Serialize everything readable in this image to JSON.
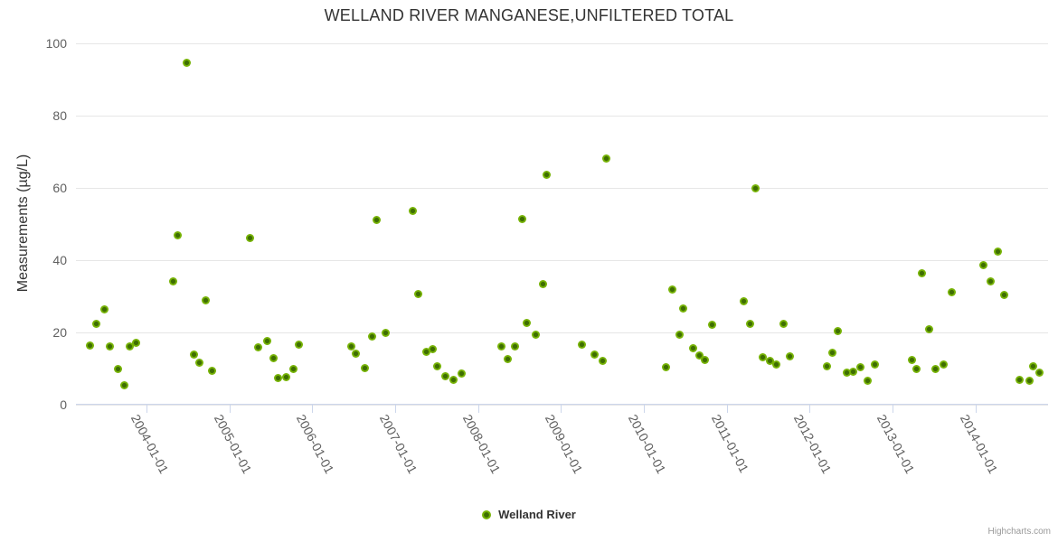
{
  "title": "WELLAND RIVER MANGANESE,UNFILTERED TOTAL",
  "credit": {
    "label": "Highcharts.com"
  },
  "colors": {
    "point_fill": "#77b306",
    "point_core": "#3e6e02",
    "gridline": "#e6e6e6",
    "axis_line": "#ccd6eb",
    "title_text": "#333333",
    "tick_text": "#606060"
  },
  "chart_data": {
    "type": "scatter",
    "title": "WELLAND RIVER MANGANESE,UNFILTERED TOTAL",
    "xlabel": "",
    "ylabel": "Measurements (µg/L)",
    "ylim": [
      0,
      100
    ],
    "yticks": [
      0,
      20,
      40,
      60,
      80,
      100
    ],
    "xticks": [
      "2004-01-01",
      "2005-01-01",
      "2006-01-01",
      "2007-01-01",
      "2008-01-01",
      "2009-01-01",
      "2010-01-01",
      "2011-01-01",
      "2012-01-01",
      "2013-01-01",
      "2014-01-01"
    ],
    "grid": "horizontal-only",
    "legend_position": "bottom-center",
    "series": [
      {
        "name": "Welland River",
        "color": "#77b306",
        "point_format": "[decimal_year, micrograms_per_litre]",
        "points": [
          [
            2003.32,
            16.3
          ],
          [
            2003.4,
            22.3
          ],
          [
            2003.49,
            26.3
          ],
          [
            2003.56,
            16.0
          ],
          [
            2003.66,
            9.8
          ],
          [
            2003.73,
            5.3
          ],
          [
            2003.8,
            16.0
          ],
          [
            2003.88,
            17.0
          ],
          [
            2004.32,
            34.0
          ],
          [
            2004.38,
            46.8
          ],
          [
            2004.49,
            94.4
          ],
          [
            2004.57,
            13.8
          ],
          [
            2004.64,
            11.4
          ],
          [
            2004.71,
            28.7
          ],
          [
            2004.79,
            9.2
          ],
          [
            2005.25,
            45.9
          ],
          [
            2005.35,
            15.8
          ],
          [
            2005.46,
            17.6
          ],
          [
            2005.53,
            12.8
          ],
          [
            2005.59,
            7.3
          ],
          [
            2005.69,
            7.5
          ],
          [
            2005.77,
            9.8
          ],
          [
            2005.84,
            16.5
          ],
          [
            2006.47,
            16.0
          ],
          [
            2006.53,
            14.0
          ],
          [
            2006.63,
            10.0
          ],
          [
            2006.72,
            18.8
          ],
          [
            2006.78,
            51.0
          ],
          [
            2006.88,
            19.8
          ],
          [
            2007.21,
            53.6
          ],
          [
            2007.28,
            30.5
          ],
          [
            2007.38,
            14.5
          ],
          [
            2007.45,
            15.3
          ],
          [
            2007.51,
            10.5
          ],
          [
            2007.61,
            7.8
          ],
          [
            2007.7,
            6.8
          ],
          [
            2007.8,
            8.5
          ],
          [
            2008.28,
            16.1
          ],
          [
            2008.36,
            12.6
          ],
          [
            2008.44,
            16.1
          ],
          [
            2008.53,
            51.2
          ],
          [
            2008.59,
            22.5
          ],
          [
            2008.7,
            19.3
          ],
          [
            2008.78,
            33.2
          ],
          [
            2008.83,
            63.5
          ],
          [
            2009.25,
            16.5
          ],
          [
            2009.4,
            13.8
          ],
          [
            2009.5,
            12.0
          ],
          [
            2009.55,
            68.0
          ],
          [
            2010.27,
            10.3
          ],
          [
            2010.34,
            31.8
          ],
          [
            2010.43,
            19.3
          ],
          [
            2010.47,
            26.6
          ],
          [
            2010.59,
            15.5
          ],
          [
            2010.67,
            13.6
          ],
          [
            2010.74,
            12.2
          ],
          [
            2010.82,
            22.0
          ],
          [
            2011.2,
            28.4
          ],
          [
            2011.28,
            22.2
          ],
          [
            2011.35,
            59.8
          ],
          [
            2011.43,
            13.0
          ],
          [
            2011.52,
            11.9
          ],
          [
            2011.6,
            11.1
          ],
          [
            2011.68,
            22.2
          ],
          [
            2011.76,
            13.3
          ],
          [
            2012.21,
            10.5
          ],
          [
            2012.27,
            14.3
          ],
          [
            2012.34,
            20.3
          ],
          [
            2012.45,
            8.8
          ],
          [
            2012.53,
            9.0
          ],
          [
            2012.61,
            10.3
          ],
          [
            2012.7,
            6.5
          ],
          [
            2012.79,
            11.1
          ],
          [
            2013.23,
            12.2
          ],
          [
            2013.29,
            9.7
          ],
          [
            2013.35,
            36.3
          ],
          [
            2013.44,
            20.8
          ],
          [
            2013.52,
            9.7
          ],
          [
            2013.62,
            10.9
          ],
          [
            2013.71,
            31.1
          ],
          [
            2014.1,
            38.5
          ],
          [
            2014.18,
            34.1
          ],
          [
            2014.27,
            42.3
          ],
          [
            2014.35,
            30.3
          ],
          [
            2014.53,
            6.8
          ],
          [
            2014.65,
            6.5
          ],
          [
            2014.7,
            10.5
          ],
          [
            2014.77,
            8.8
          ]
        ]
      }
    ]
  }
}
